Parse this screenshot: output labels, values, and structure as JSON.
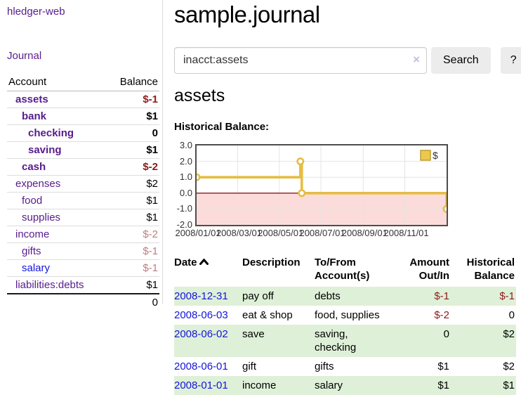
{
  "sidebar": {
    "app_title": "hledger-web",
    "journal_link": "Journal",
    "accounts_table": {
      "headers": {
        "account": "Account",
        "balance": "Balance"
      },
      "rows": [
        {
          "name": "assets",
          "balance": "$-1",
          "indent": 0,
          "bold": true,
          "neg": "strong"
        },
        {
          "name": "bank",
          "balance": "$1",
          "indent": 1,
          "bold": true,
          "neg": null
        },
        {
          "name": "checking",
          "balance": "0",
          "indent": 2,
          "bold": true,
          "neg": null
        },
        {
          "name": "saving",
          "balance": "$1",
          "indent": 2,
          "bold": true,
          "neg": null
        },
        {
          "name": "cash",
          "balance": "$-2",
          "indent": 1,
          "bold": true,
          "neg": "strong"
        },
        {
          "name": "expenses",
          "balance": "$2",
          "indent": 0,
          "bold": false,
          "neg": null
        },
        {
          "name": "food",
          "balance": "$1",
          "indent": 1,
          "bold": false,
          "neg": null
        },
        {
          "name": "supplies",
          "balance": "$1",
          "indent": 1,
          "bold": false,
          "neg": null
        },
        {
          "name": "income",
          "balance": "$-2",
          "indent": 0,
          "bold": false,
          "neg": "muted"
        },
        {
          "name": "gifts",
          "balance": "$-1",
          "indent": 1,
          "bold": false,
          "neg": "muted"
        },
        {
          "name": "salary",
          "balance": "$-1",
          "indent": 1,
          "bold": false,
          "neg": "muted",
          "blue": true
        },
        {
          "name": "liabilities:debts",
          "balance": "$1",
          "indent": 0,
          "bold": false,
          "neg": null
        }
      ],
      "total": "0"
    }
  },
  "main": {
    "title": "sample.journal",
    "search": {
      "value": "inacct:assets",
      "clear_icon": "×",
      "search_button": "Search",
      "help_button": "?"
    },
    "account_heading": "assets",
    "chart_title": "Historical Balance:",
    "register_table": {
      "headers": {
        "date": "Date",
        "description": "Description",
        "tofrom": "To/From Account(s)",
        "amount": "Amount Out/In",
        "balance": "Historical Balance"
      },
      "rows": [
        {
          "date": "2008-12-31",
          "description": "pay off",
          "accounts": "debts",
          "amount": "$-1",
          "balance": "$-1",
          "amount_neg": true,
          "balance_neg": true
        },
        {
          "date": "2008-06-03",
          "description": "eat & shop",
          "accounts": "food, supplies",
          "amount": "$-2",
          "balance": "0",
          "amount_neg": true,
          "balance_neg": false
        },
        {
          "date": "2008-06-02",
          "description": "save",
          "accounts": "saving, checking",
          "amount": "0",
          "balance": "$2",
          "amount_neg": false,
          "balance_neg": false
        },
        {
          "date": "2008-06-01",
          "description": "gift",
          "accounts": "gifts",
          "amount": "$1",
          "balance": "$2",
          "amount_neg": false,
          "balance_neg": false
        },
        {
          "date": "2008-01-01",
          "description": "income",
          "accounts": "salary",
          "amount": "$1",
          "balance": "$1",
          "amount_neg": false,
          "balance_neg": false
        }
      ]
    }
  },
  "chart_data": {
    "type": "line",
    "title": "Historical Balance:",
    "step": true,
    "series": [
      {
        "name": "$",
        "points": [
          [
            "2008-01-01",
            1
          ],
          [
            "2008-06-01",
            2
          ],
          [
            "2008-06-02",
            2
          ],
          [
            "2008-06-03",
            0
          ],
          [
            "2008-12-31",
            -1
          ]
        ]
      }
    ],
    "y_ticks": [
      "3.0",
      "2.0",
      "1.0",
      "0.0",
      "-1.0",
      "-2.0"
    ],
    "x_ticks": [
      "2008/01/01",
      "2008/03/01",
      "2008/05/01",
      "2008/07/01",
      "2008/09/01",
      "2008/11/01"
    ],
    "ylim": [
      -2,
      3
    ],
    "xlim": [
      "2008-01-01",
      "2009-01-01"
    ],
    "legend": {
      "label": "$",
      "position": "top-right"
    },
    "grid": true
  },
  "colors": {
    "link_purple": "#571c8d",
    "link_blue": "#1414dd",
    "negative_strong": "#8e1a1a",
    "negative_muted": "#bd7d80",
    "row_green": "#dff0d8",
    "chart_line_gold": "#e6bd44",
    "chart_negative_pink": "#fcdbdb",
    "chart_zero_line": "#8b1a1a"
  }
}
